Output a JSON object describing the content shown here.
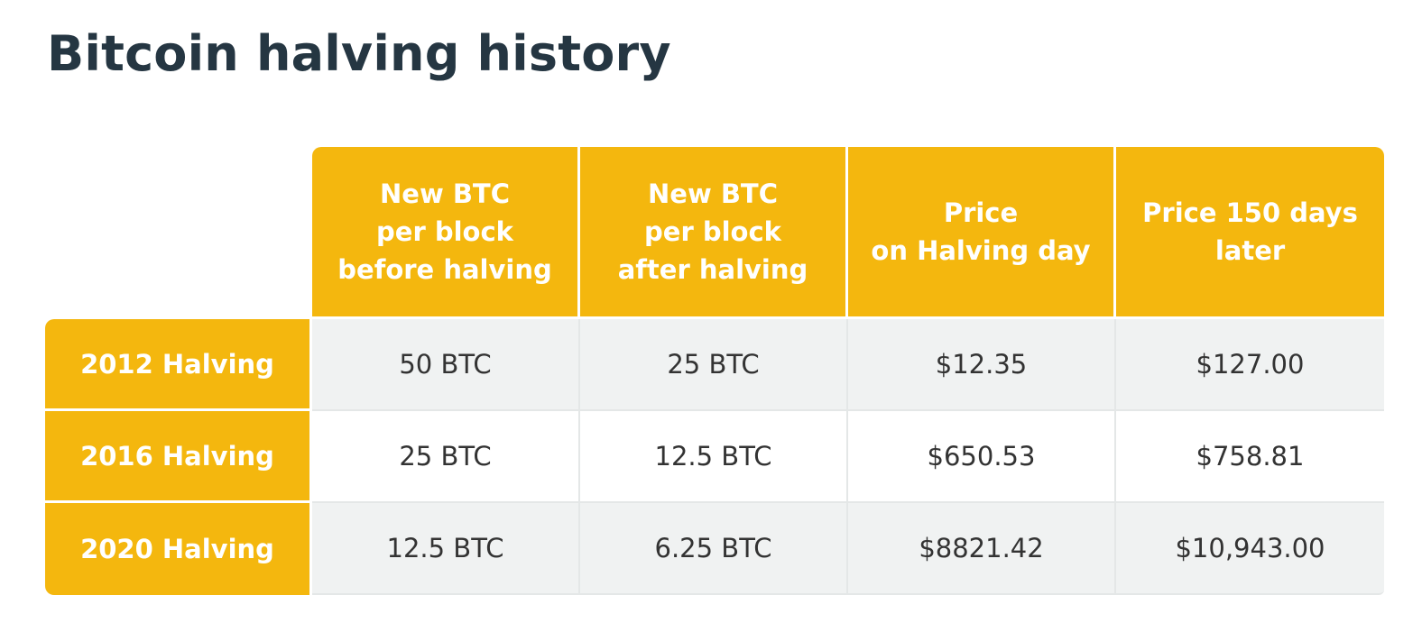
{
  "title": "Bitcoin halving history",
  "colors": {
    "accent": "#f4b70e",
    "title_text": "#253642",
    "body_text": "#333333",
    "shaded_row": "#f0f2f2",
    "divider": "#e4e7e7"
  },
  "chart_data": {
    "type": "table",
    "title": "Bitcoin halving history",
    "columns": [
      [
        "New BTC",
        "per block",
        "before halving"
      ],
      [
        "New BTC",
        "per block",
        "after halving"
      ],
      [
        "Price",
        "on Halving day"
      ],
      [
        "Price 150 days",
        "later"
      ]
    ],
    "rows": [
      {
        "label": "2012 Halving",
        "cells": [
          "50 BTC",
          "25 BTC",
          "$12.35",
          "$127.00"
        ]
      },
      {
        "label": "2016 Halving",
        "cells": [
          "25 BTC",
          "12.5 BTC",
          "$650.53",
          "$758.81"
        ]
      },
      {
        "label": "2020 Halving",
        "cells": [
          "12.5 BTC",
          "6.25 BTC",
          "$8821.42",
          "$10,943.00"
        ]
      }
    ]
  }
}
